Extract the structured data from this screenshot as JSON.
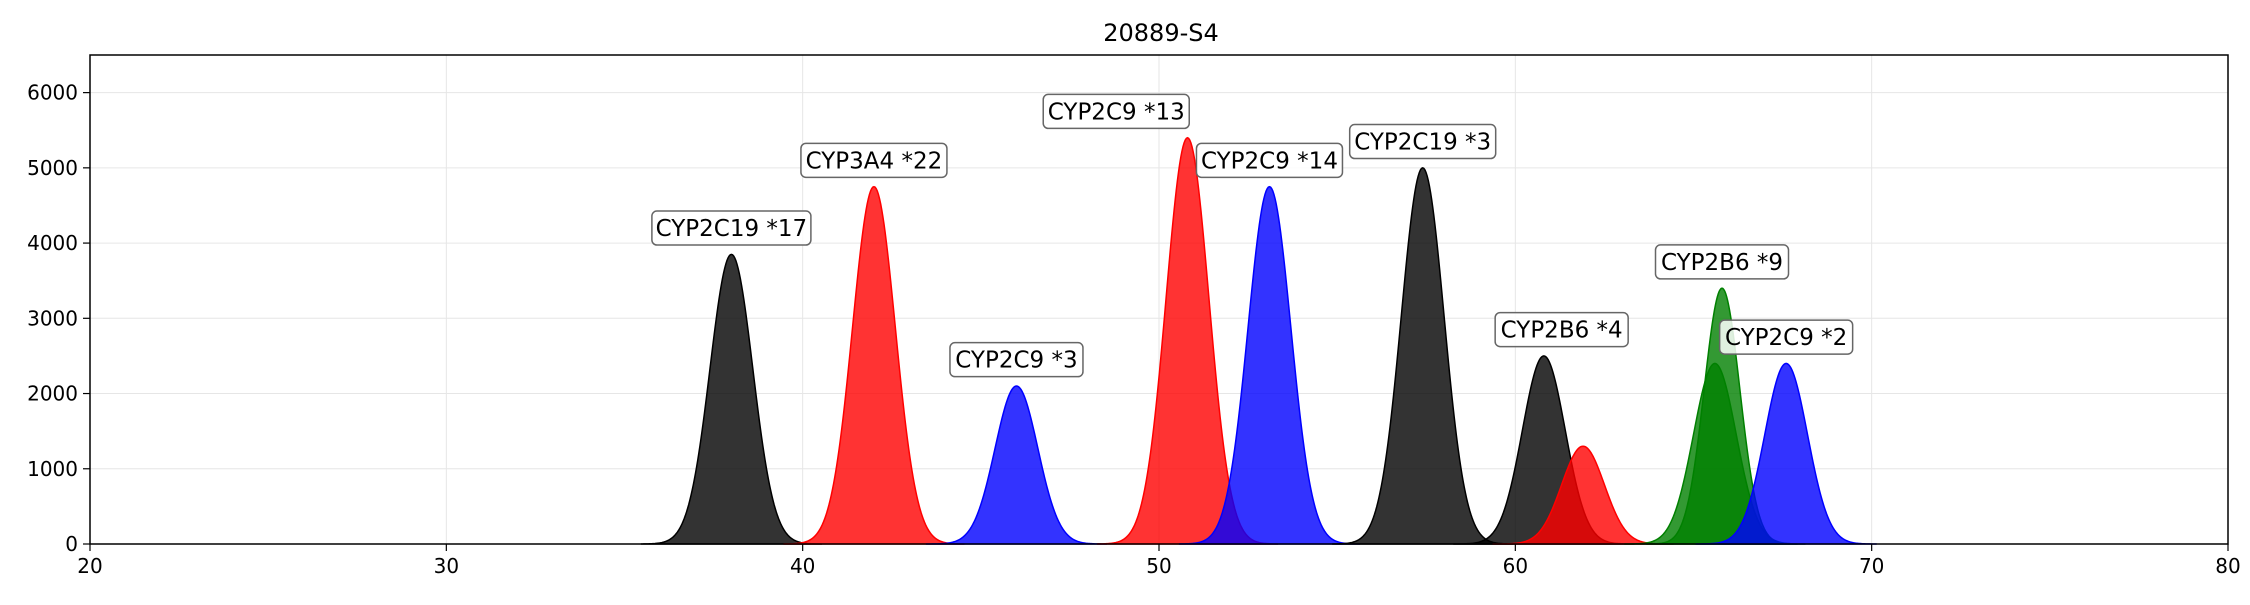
{
  "chart_data": {
    "type": "area",
    "title": "20889-S4",
    "xlabel": "",
    "ylabel": "",
    "xlim": [
      20,
      80
    ],
    "ylim": [
      0,
      6500
    ],
    "x_ticks": [
      20,
      30,
      40,
      50,
      60,
      70,
      80
    ],
    "y_ticks": [
      0,
      1000,
      2000,
      3000,
      4000,
      5000,
      6000
    ],
    "grid": true,
    "legend": "none",
    "colors": {
      "black": "#000000",
      "red": "#ff0000",
      "blue": "#0000ff",
      "green": "#008000",
      "label_border": "#666666"
    },
    "peaks": [
      {
        "center": 38.0,
        "height": 3850,
        "sigma": 0.6,
        "color": "black"
      },
      {
        "center": 42.0,
        "height": 4750,
        "sigma": 0.6,
        "color": "red"
      },
      {
        "center": 46.0,
        "height": 2100,
        "sigma": 0.6,
        "color": "blue"
      },
      {
        "center": 50.8,
        "height": 5400,
        "sigma": 0.6,
        "color": "red"
      },
      {
        "center": 53.1,
        "height": 4750,
        "sigma": 0.6,
        "color": "blue"
      },
      {
        "center": 57.4,
        "height": 5000,
        "sigma": 0.6,
        "color": "black"
      },
      {
        "center": 60.8,
        "height": 2500,
        "sigma": 0.6,
        "color": "black"
      },
      {
        "center": 61.9,
        "height": 1300,
        "sigma": 0.6,
        "color": "red"
      },
      {
        "center": 65.6,
        "height": 2400,
        "sigma": 0.6,
        "color": "green"
      },
      {
        "center": 65.8,
        "height": 3400,
        "sigma": 0.5,
        "color": "green"
      },
      {
        "center": 67.6,
        "height": 2400,
        "sigma": 0.6,
        "color": "blue"
      }
    ],
    "annotations": [
      {
        "text": "CYP2C19 *17",
        "x": 38.0,
        "y": 4200
      },
      {
        "text": "CYP3A4 *22",
        "x": 42.0,
        "y": 5100
      },
      {
        "text": "CYP2C9 *3",
        "x": 46.0,
        "y": 2450
      },
      {
        "text": "CYP2C9 *13",
        "x": 48.8,
        "y": 5750
      },
      {
        "text": "CYP2C9 *14",
        "x": 53.1,
        "y": 5100
      },
      {
        "text": "CYP2C19 *3",
        "x": 57.4,
        "y": 5350
      },
      {
        "text": "CYP2B6 *4",
        "x": 61.3,
        "y": 2850
      },
      {
        "text": "CYP2B6 *9",
        "x": 65.8,
        "y": 3750
      },
      {
        "text": "CYP2C9 *2",
        "x": 67.6,
        "y": 2750
      }
    ]
  }
}
